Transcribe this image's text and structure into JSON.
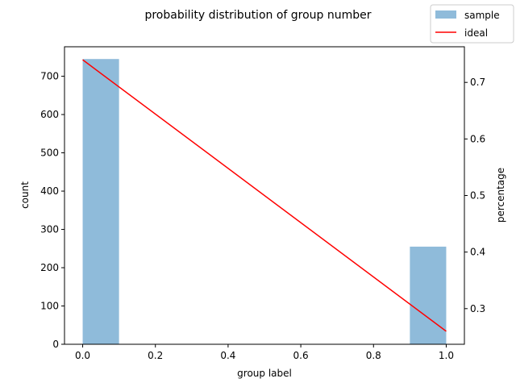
{
  "chart_data": {
    "type": "bar",
    "title": "probability distribution of group number",
    "xlabel": "group label",
    "ylabel": "count",
    "y2label": "percentage",
    "xlim": [
      -0.05,
      1.05
    ],
    "ylim": [
      0,
      777
    ],
    "y2lim": [
      0.237,
      0.763
    ],
    "x_ticks": [
      0.0,
      0.2,
      0.4,
      0.6,
      0.8,
      1.0
    ],
    "x_tick_labels": [
      "0.0",
      "0.2",
      "0.4",
      "0.6",
      "0.8",
      "1.0"
    ],
    "y_ticks": [
      0,
      100,
      200,
      300,
      400,
      500,
      600,
      700
    ],
    "y_tick_labels": [
      "0",
      "100",
      "200",
      "300",
      "400",
      "500",
      "600",
      "700"
    ],
    "y2_ticks": [
      0.3,
      0.4,
      0.5,
      0.6,
      0.7
    ],
    "y2_tick_labels": [
      "0.3",
      "0.4",
      "0.5",
      "0.6",
      "0.7"
    ],
    "grid": false,
    "legend_position": "top-right",
    "series": [
      {
        "name": "sample",
        "kind": "histogram",
        "axis": "left",
        "color": "#8fbbda",
        "bins": [
          {
            "x0": 0.0,
            "x1": 0.1,
            "value": 745
          },
          {
            "x0": 0.1,
            "x1": 0.2,
            "value": 0
          },
          {
            "x0": 0.2,
            "x1": 0.3,
            "value": 0
          },
          {
            "x0": 0.3,
            "x1": 0.4,
            "value": 0
          },
          {
            "x0": 0.4,
            "x1": 0.5,
            "value": 0
          },
          {
            "x0": 0.5,
            "x1": 0.6,
            "value": 0
          },
          {
            "x0": 0.6,
            "x1": 0.7,
            "value": 0
          },
          {
            "x0": 0.7,
            "x1": 0.8,
            "value": 0
          },
          {
            "x0": 0.8,
            "x1": 0.9,
            "value": 0
          },
          {
            "x0": 0.9,
            "x1": 1.0,
            "value": 255
          }
        ]
      },
      {
        "name": "ideal",
        "kind": "line",
        "axis": "right",
        "color": "#ff0000",
        "x": [
          0.0,
          1.0
        ],
        "y": [
          0.74,
          0.26
        ]
      }
    ]
  }
}
